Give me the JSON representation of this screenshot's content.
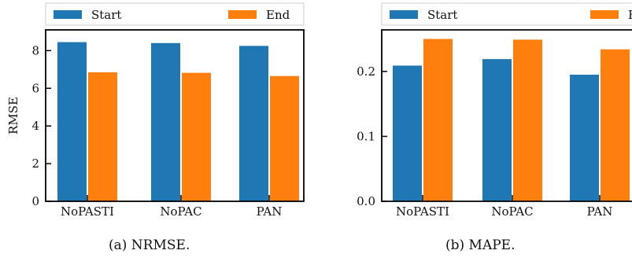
{
  "colors": {
    "start": "#1f77b4",
    "end": "#ff7f0e",
    "axis": "#000000"
  },
  "chart_data": [
    {
      "type": "bar",
      "caption": "(a) NRMSE.",
      "ylabel": "RMSE",
      "categories": [
        "NoPASTI",
        "NoPAC",
        "PAN"
      ],
      "series": [
        {
          "name": "Start",
          "values": [
            8.45,
            8.4,
            8.25
          ]
        },
        {
          "name": "End",
          "values": [
            6.85,
            6.82,
            6.65
          ]
        }
      ],
      "ylim": [
        0,
        9.1
      ],
      "yticks": [
        0,
        2,
        4,
        6,
        8
      ],
      "ytick_labels": [
        "0",
        "2",
        "4",
        "6",
        "8"
      ],
      "legend": "top",
      "grid": false
    },
    {
      "type": "bar",
      "caption": "(b) MAPE.",
      "ylabel": "",
      "categories": [
        "NoPASTI",
        "NoPAC",
        "PAN"
      ],
      "series": [
        {
          "name": "Start",
          "values": [
            0.209,
            0.219,
            0.195
          ]
        },
        {
          "name": "End",
          "values": [
            0.25,
            0.249,
            0.234
          ]
        }
      ],
      "ylim": [
        0,
        0.264
      ],
      "yticks": [
        0,
        0.1,
        0.2
      ],
      "ytick_labels": [
        "0.0",
        "0.1",
        "0.2"
      ],
      "legend": "top",
      "grid": false
    }
  ]
}
